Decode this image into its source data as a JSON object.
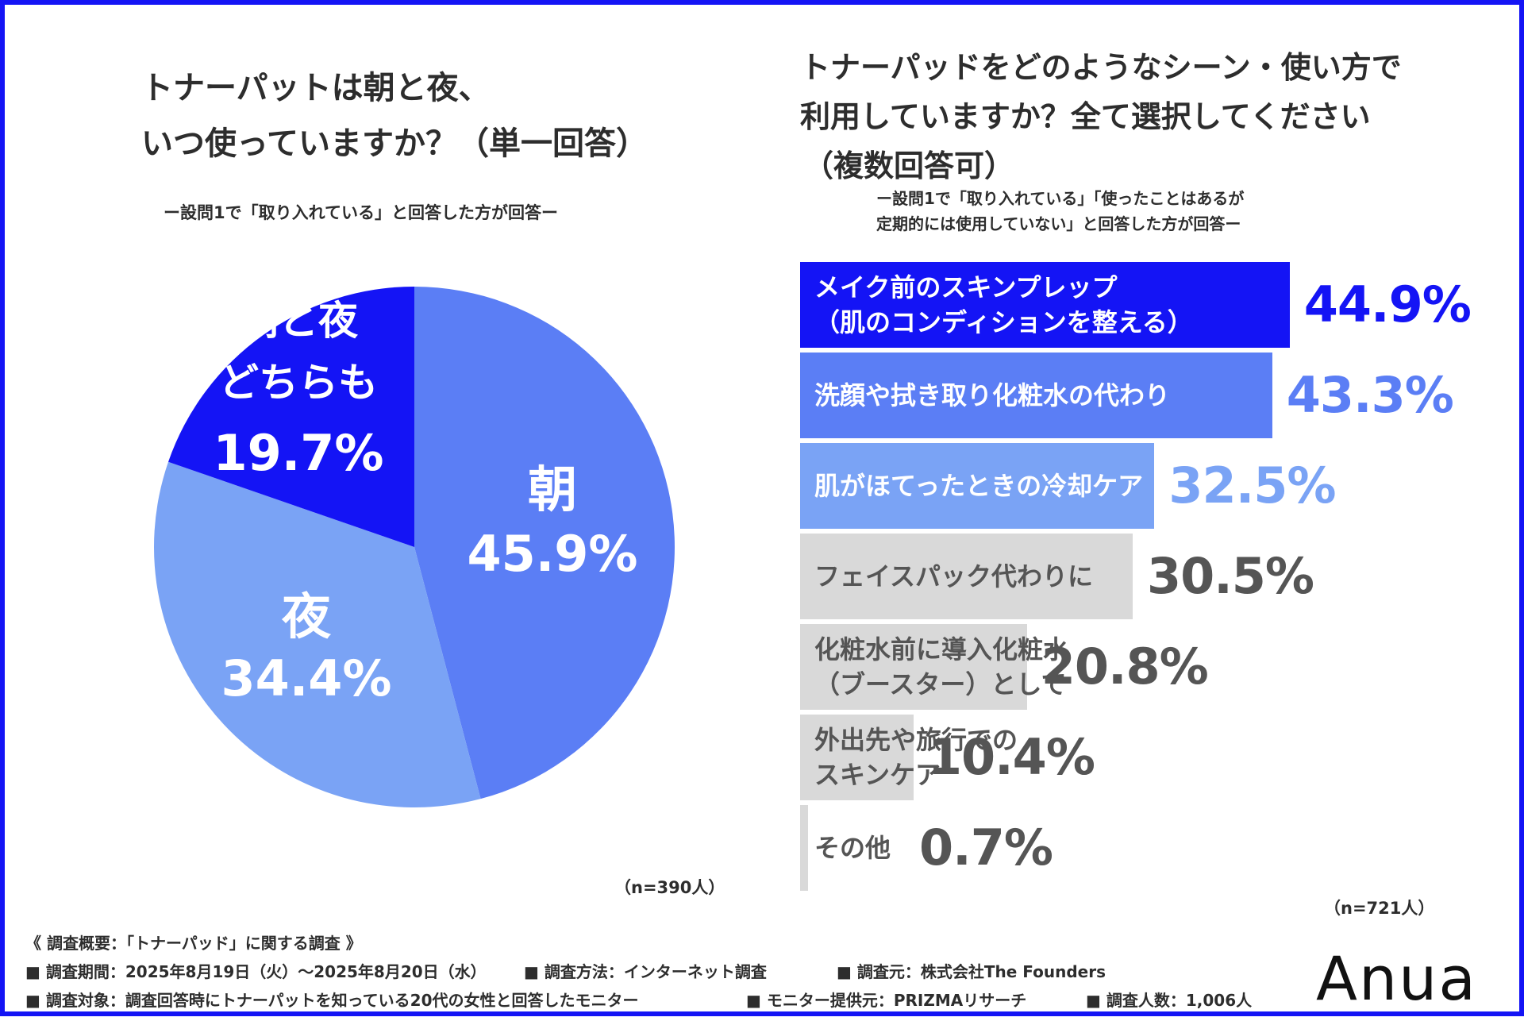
{
  "left": {
    "title_line1": "トナーパットは朝と夜、",
    "title_line2": "いつ使っていますか？（単一回答）",
    "subtitle": "ー設問1で「取り入れている」と回答した方が回答ー",
    "n": "（n=390人）"
  },
  "right": {
    "title_line1": "トナーパッドをどのようなシーン・使い方で",
    "title_line2": "利用していますか？全て選択してください",
    "title_line3": "（複数回答可）",
    "subtitle_line1": "ー設問1で「取り入れている」「使ったことはあるが",
    "subtitle_line2": "定期的には使用していない」と回答した方が回答ー",
    "n": "（n=721人）"
  },
  "chart_data": [
    {
      "type": "pie",
      "slices": [
        {
          "label": "朝",
          "value": 45.9,
          "display": "45.9%",
          "color": "#5b7ef5"
        },
        {
          "label": "夜",
          "value": 34.4,
          "display": "34.4%",
          "color": "#7aa3f5"
        },
        {
          "label_lines": [
            "朝と夜",
            "どちらも"
          ],
          "value": 19.7,
          "display": "19.7%",
          "color": "#1414f5"
        }
      ]
    },
    {
      "type": "bar",
      "orientation": "horizontal",
      "xlim": [
        0,
        50
      ],
      "bars": [
        {
          "label_lines": [
            "メイク前のスキンプレップ",
            "（肌のコンディションを整える）"
          ],
          "value": 44.9,
          "display": "44.9%",
          "color": "#1414f5",
          "value_color": "#1414f5",
          "label_color": "#ffffff"
        },
        {
          "label_lines": [
            "洗顔や拭き取り化粧水の代わり"
          ],
          "value": 43.3,
          "display": "43.3%",
          "color": "#5b7ef5",
          "value_color": "#5b7ef5",
          "label_color": "#ffffff"
        },
        {
          "label_lines": [
            "肌がほてったときの冷却ケア"
          ],
          "value": 32.5,
          "display": "32.5%",
          "color": "#7aa3f5",
          "value_color": "#7aa3f5",
          "label_color": "#ffffff"
        },
        {
          "label_lines": [
            "フェイスパック代わりに"
          ],
          "value": 30.5,
          "display": "30.5%",
          "color": "#d9d9d9",
          "value_color": "#555555",
          "label_color": "#555555"
        },
        {
          "label_lines": [
            "化粧水前に導入化粧水",
            "（ブースター）として"
          ],
          "value": 20.8,
          "display": "20.8%",
          "color": "#d9d9d9",
          "value_color": "#555555",
          "label_color": "#555555"
        },
        {
          "label_lines": [
            "外出先や旅行での",
            "スキンケア"
          ],
          "value": 10.4,
          "display": "10.4%",
          "color": "#d9d9d9",
          "value_color": "#555555",
          "label_color": "#555555"
        },
        {
          "label_lines": [
            "その他"
          ],
          "value": 0.7,
          "display": "0.7%",
          "color": "#d9d9d9",
          "value_color": "#555555",
          "label_color": "#555555"
        }
      ]
    }
  ],
  "footer": {
    "summary": "《 調査概要：「トナーパッド」に関する調査 》",
    "period": "■ 調査期間：2025年8月19日（火）〜2025年8月20日（水）",
    "method": "■ 調査方法：インターネット調査",
    "org": "■ 調査元：株式会社The Founders",
    "target": "■ 調査対象：調査回答時にトナーパットを知っている20代の女性と回答したモニター",
    "provider": "■ モニター提供元：PRIZMAリサーチ",
    "count": "■ 調査人数：1,006人"
  },
  "logo": "Anua"
}
